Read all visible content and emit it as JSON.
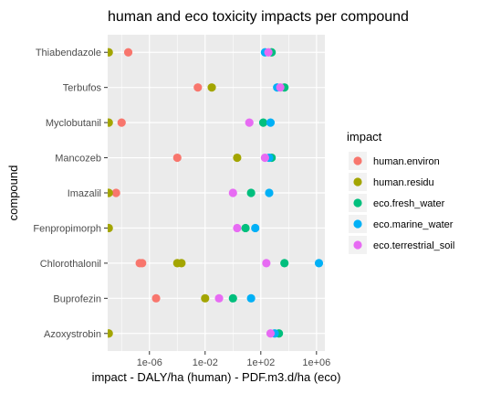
{
  "chart_data": {
    "type": "scatter",
    "title": "human and eco toxicity impacts per compound",
    "xlabel": "impact - DALY/ha (human) - PDF.m3.d/ha (eco)",
    "ylabel": "compound",
    "x_scale": "log10",
    "xlim": [
      1e-09,
      4000000.0
    ],
    "x_ticks": [
      1e-06,
      0.01,
      100,
      1000000.0
    ],
    "x_tick_labels": [
      "1e-06",
      "1e-02",
      "1e+02",
      "1e+06"
    ],
    "categories": [
      "Thiabendazole",
      "Terbufos",
      "Myclobutanil",
      "Mancozeb",
      "Imazalil",
      "Fenpropimorph",
      "Chlorothalonil",
      "Buprofezin",
      "Azoxystrobin"
    ],
    "grid": true,
    "legend_title": "impact",
    "legend_position": "right",
    "series": [
      {
        "name": "human.environ",
        "color": "#F8766D",
        "points": [
          {
            "y": "Thiabendazole",
            "x": 3e-08
          },
          {
            "y": "Terbufos",
            "x": 0.003
          },
          {
            "y": "Myclobutanil",
            "x": 1e-08
          },
          {
            "y": "Mancozeb",
            "x": 0.0001
          },
          {
            "y": "Imazalil",
            "x": 4e-09
          },
          {
            "y": "Chlorothalonil",
            "x": 2e-07
          },
          {
            "y": "Chlorothalonil",
            "x": 3e-07
          },
          {
            "y": "Buprofezin",
            "x": 3e-06
          }
        ]
      },
      {
        "name": "human.residu",
        "color": "#A3A500",
        "points": [
          {
            "y": "Thiabendazole",
            "x": 1.2e-09
          },
          {
            "y": "Terbufos",
            "x": 0.03
          },
          {
            "y": "Myclobutanil",
            "x": 1.2e-09
          },
          {
            "y": "Mancozeb",
            "x": 2
          },
          {
            "y": "Imazalil",
            "x": 1.2e-09
          },
          {
            "y": "Fenpropimorph",
            "x": 1.2e-09
          },
          {
            "y": "Chlorothalonil",
            "x": 0.0001
          },
          {
            "y": "Chlorothalonil",
            "x": 0.0002
          },
          {
            "y": "Buprofezin",
            "x": 0.01
          },
          {
            "y": "Azoxystrobin",
            "x": 1.2e-09
          }
        ]
      },
      {
        "name": "eco.fresh_water",
        "color": "#00BF7D",
        "points": [
          {
            "y": "Thiabendazole",
            "x": 600
          },
          {
            "y": "Terbufos",
            "x": 5000
          },
          {
            "y": "Myclobutanil",
            "x": 150
          },
          {
            "y": "Mancozeb",
            "x": 600
          },
          {
            "y": "Imazalil",
            "x": 20
          },
          {
            "y": "Fenpropimorph",
            "x": 8
          },
          {
            "y": "Chlorothalonil",
            "x": 5000
          },
          {
            "y": "Buprofezin",
            "x": 1
          },
          {
            "y": "Azoxystrobin",
            "x": 2000
          }
        ]
      },
      {
        "name": "eco.marine_water",
        "color": "#00B0F6",
        "points": [
          {
            "y": "Thiabendazole",
            "x": 200
          },
          {
            "y": "Terbufos",
            "x": 1500
          },
          {
            "y": "Myclobutanil",
            "x": 500
          },
          {
            "y": "Mancozeb",
            "x": 400
          },
          {
            "y": "Imazalil",
            "x": 400
          },
          {
            "y": "Fenpropimorph",
            "x": 40
          },
          {
            "y": "Chlorothalonil",
            "x": 1500000
          },
          {
            "y": "Buprofezin",
            "x": 20
          },
          {
            "y": "Azoxystrobin",
            "x": 1000
          }
        ]
      },
      {
        "name": "eco.terrestrial_soil",
        "color": "#E76BF3",
        "points": [
          {
            "y": "Thiabendazole",
            "x": 350
          },
          {
            "y": "Terbufos",
            "x": 2500
          },
          {
            "y": "Myclobutanil",
            "x": 15
          },
          {
            "y": "Mancozeb",
            "x": 200
          },
          {
            "y": "Imazalil",
            "x": 1
          },
          {
            "y": "Fenpropimorph",
            "x": 2
          },
          {
            "y": "Chlorothalonil",
            "x": 250
          },
          {
            "y": "Buprofezin",
            "x": 0.1
          },
          {
            "y": "Azoxystrobin",
            "x": 500
          }
        ]
      }
    ]
  }
}
